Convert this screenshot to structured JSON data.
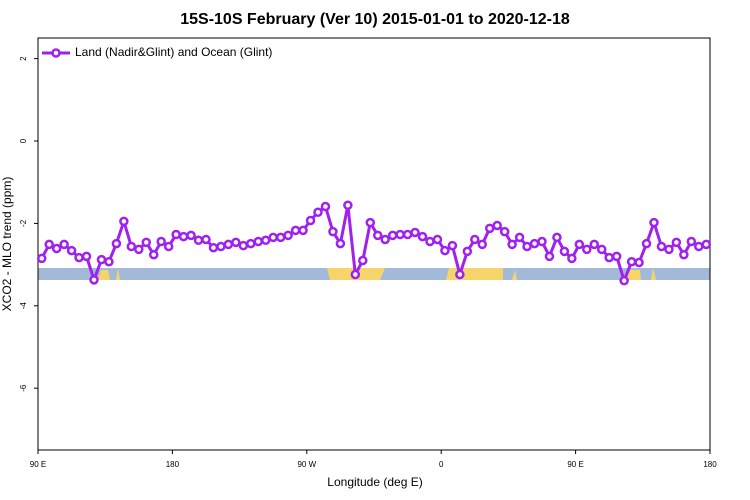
{
  "chart_data": {
    "type": "line",
    "title": "15S-10S February (Ver 10)   2015-01-01 to 2020-12-18",
    "x_label": "Longitude (deg E)",
    "y_label": "XCO2 - MLO trend (ppm)",
    "xlim": [
      90,
      540
    ],
    "ylim": [
      -7.5,
      2.5
    ],
    "xticks": [
      {
        "value": 90,
        "label": "90 E"
      },
      180,
      {
        "value": 270,
        "label": "90 W"
      },
      {
        "value": 360,
        "label": "0"
      },
      {
        "value": 450,
        "label": "90 E"
      },
      {
        "value": 540,
        "label": "180"
      }
    ],
    "yticks": [
      2,
      0,
      -2,
      -4,
      -6
    ],
    "legend": "top-left",
    "x": [
      92.5,
      97.5,
      102.5,
      107.5,
      112.5,
      117.5,
      122.5,
      127.5,
      132.5,
      137.5,
      142.5,
      147.5,
      152.5,
      157.5,
      162.5,
      167.5,
      172.5,
      177.5,
      182.5,
      187.5,
      192.5,
      197.5,
      202.5,
      207.5,
      212.5,
      217.5,
      222.5,
      227.5,
      232.5,
      237.5,
      242.5,
      247.5,
      252.5,
      257.5,
      262.5,
      267.5,
      272.5,
      277.5,
      282.5,
      287.5,
      292.5,
      297.5,
      302.5,
      307.5,
      312.5,
      317.5,
      322.5,
      327.5,
      332.5,
      337.5,
      342.5,
      347.5,
      352.5,
      357.5,
      362.5,
      367.5,
      372.5,
      377.5,
      382.5,
      387.5,
      392.5,
      397.5,
      402.5,
      407.5,
      412.5,
      417.5,
      422.5,
      427.5,
      432.5,
      437.5,
      442.5,
      447.5,
      452.5,
      457.5,
      462.5,
      467.5,
      472.5,
      477.5,
      482.5,
      487.5,
      492.5,
      497.5,
      502.5,
      507.5,
      512.5,
      517.5,
      522.5,
      527.5,
      532.5,
      537.5
    ],
    "series": [
      {
        "name": "Land (Nadir&Glint) and Ocean (Glint)",
        "color": "#a020f0",
        "values": [
          -2.85,
          -2.51,
          -2.61,
          -2.51,
          -2.66,
          -2.83,
          -2.8,
          -3.37,
          -2.88,
          -2.93,
          -2.49,
          -1.95,
          -2.56,
          -2.63,
          -2.46,
          -2.76,
          -2.44,
          -2.56,
          -2.27,
          -2.32,
          -2.29,
          -2.41,
          -2.39,
          -2.59,
          -2.56,
          -2.51,
          -2.46,
          -2.54,
          -2.49,
          -2.44,
          -2.41,
          -2.34,
          -2.34,
          -2.29,
          -2.17,
          -2.17,
          -1.93,
          -1.73,
          -1.59,
          -2.2,
          -2.49,
          -1.56,
          -3.24,
          -2.9,
          -1.98,
          -2.29,
          -2.39,
          -2.29,
          -2.27,
          -2.27,
          -2.22,
          -2.32,
          -2.44,
          -2.39,
          -2.66,
          -2.54,
          -3.24,
          -2.68,
          -2.39,
          -2.51,
          -2.12,
          -2.05,
          -2.2,
          -2.51,
          -2.34,
          -2.56,
          -2.49,
          -2.44,
          -2.8,
          -2.34,
          -2.68,
          -2.85,
          -2.51,
          -2.63,
          -2.51,
          -2.63,
          -2.83,
          -2.8,
          -3.39,
          -2.93,
          -2.95,
          -2.49,
          -1.98,
          -2.56,
          -2.63,
          -2.46,
          -2.76,
          -2.44,
          -2.56,
          -2.51
        ]
      }
    ]
  }
}
